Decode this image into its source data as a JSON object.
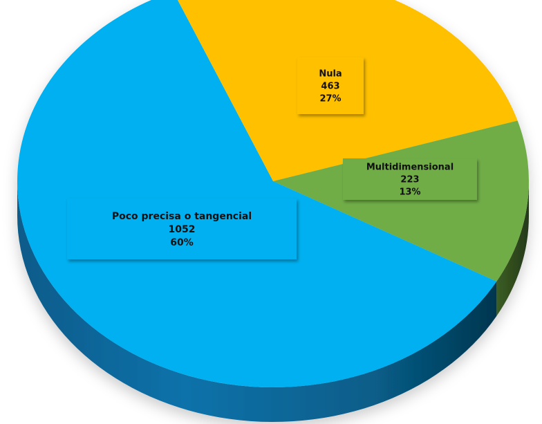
{
  "chart_data": {
    "type": "pie",
    "style": "3d",
    "slices": [
      {
        "label": "Nula",
        "value": 463,
        "percent": "27%",
        "color": "#FFC000"
      },
      {
        "label": "Multidimensional",
        "value": 223,
        "percent": "13%",
        "color": "#70AD47"
      },
      {
        "label": "Poco precisa o tangencial",
        "value": 1052,
        "percent": "60%",
        "color": "#00B0F0"
      }
    ],
    "title": "",
    "legend": "none"
  }
}
